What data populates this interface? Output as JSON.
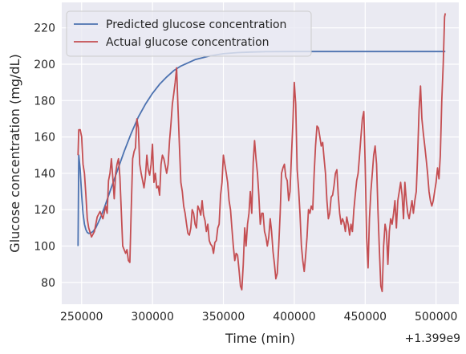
{
  "chart_data": {
    "type": "line",
    "title": "",
    "xlabel": "Time (min)",
    "ylabel": "Glucose concentration (mg/dL)",
    "x_offset_label": "+1.399e9",
    "xlim": [
      236000,
      516000
    ],
    "ylim": [
      68,
      234
    ],
    "xticks": [
      250000,
      300000,
      350000,
      400000,
      450000,
      500000
    ],
    "xtick_labels": [
      "250000",
      "300000",
      "350000",
      "400000",
      "450000",
      "500000"
    ],
    "yticks": [
      80,
      100,
      120,
      140,
      160,
      180,
      200,
      220
    ],
    "ytick_labels": [
      "80",
      "100",
      "120",
      "140",
      "160",
      "180",
      "200",
      "220"
    ],
    "grid": true,
    "legend_position": "top-left",
    "series": [
      {
        "name": "Predicted glucose concentration",
        "color": "#4c72b0",
        "points": [
          [
            247500,
            100
          ],
          [
            248000,
            150
          ],
          [
            249000,
            142
          ],
          [
            250000,
            128
          ],
          [
            251000,
            118
          ],
          [
            252000,
            112
          ],
          [
            253000,
            109
          ],
          [
            254000,
            107.5
          ],
          [
            255000,
            107
          ],
          [
            256000,
            107
          ],
          [
            258000,
            108
          ],
          [
            260000,
            110
          ],
          [
            263000,
            115
          ],
          [
            266000,
            121
          ],
          [
            270000,
            130
          ],
          [
            275000,
            141
          ],
          [
            280000,
            152
          ],
          [
            285000,
            162
          ],
          [
            290000,
            171
          ],
          [
            295000,
            178
          ],
          [
            300000,
            184
          ],
          [
            305000,
            189
          ],
          [
            310000,
            193
          ],
          [
            315000,
            196.5
          ],
          [
            320000,
            199
          ],
          [
            330000,
            202.5
          ],
          [
            340000,
            204.5
          ],
          [
            350000,
            205.8
          ],
          [
            360000,
            206.4
          ],
          [
            370000,
            206.7
          ],
          [
            380000,
            206.9
          ],
          [
            400000,
            207
          ],
          [
            450000,
            207
          ],
          [
            506500,
            207
          ]
        ]
      },
      {
        "name": "Actual glucose concentration",
        "color": "#c44e52",
        "points": [
          [
            247500,
            150
          ],
          [
            248000,
            164
          ],
          [
            249000,
            164
          ],
          [
            250000,
            160
          ],
          [
            251000,
            145
          ],
          [
            252000,
            140
          ],
          [
            253000,
            128
          ],
          [
            254000,
            115
          ],
          [
            255000,
            110
          ],
          [
            257000,
            105
          ],
          [
            259000,
            108
          ],
          [
            261000,
            116
          ],
          [
            263000,
            119
          ],
          [
            265000,
            115
          ],
          [
            267000,
            122
          ],
          [
            268000,
            118
          ],
          [
            269000,
            136
          ],
          [
            270000,
            140
          ],
          [
            271000,
            148
          ],
          [
            272000,
            138
          ],
          [
            273000,
            126
          ],
          [
            274000,
            140
          ],
          [
            275000,
            145
          ],
          [
            276000,
            148
          ],
          [
            277000,
            138
          ],
          [
            279000,
            100
          ],
          [
            281000,
            96
          ],
          [
            282000,
            98
          ],
          [
            283000,
            92
          ],
          [
            284000,
            91
          ],
          [
            285000,
            120
          ],
          [
            286000,
            148
          ],
          [
            287000,
            152
          ],
          [
            288000,
            154
          ],
          [
            289000,
            170
          ],
          [
            290000,
            165
          ],
          [
            291000,
            145
          ],
          [
            292000,
            140
          ],
          [
            293000,
            136
          ],
          [
            294000,
            132
          ],
          [
            295000,
            138
          ],
          [
            296000,
            150
          ],
          [
            297000,
            142
          ],
          [
            298000,
            139
          ],
          [
            299000,
            145
          ],
          [
            300000,
            156
          ],
          [
            301000,
            135
          ],
          [
            302000,
            140
          ],
          [
            303000,
            132
          ],
          [
            304000,
            133
          ],
          [
            305000,
            128
          ],
          [
            306000,
            145
          ],
          [
            307000,
            150
          ],
          [
            308000,
            148
          ],
          [
            309000,
            144
          ],
          [
            310000,
            140
          ],
          [
            311000,
            145
          ],
          [
            312000,
            158
          ],
          [
            313000,
            167
          ],
          [
            314000,
            178
          ],
          [
            315000,
            184
          ],
          [
            316000,
            190
          ],
          [
            317000,
            198
          ],
          [
            318000,
            175
          ],
          [
            319000,
            155
          ],
          [
            320000,
            135
          ],
          [
            321000,
            130
          ],
          [
            322000,
            122
          ],
          [
            323000,
            118
          ],
          [
            324000,
            112
          ],
          [
            325000,
            107
          ],
          [
            326000,
            106
          ],
          [
            327000,
            110
          ],
          [
            328000,
            120
          ],
          [
            329000,
            118
          ],
          [
            330000,
            112
          ],
          [
            331000,
            110
          ],
          [
            332000,
            122
          ],
          [
            333000,
            120
          ],
          [
            334000,
            117
          ],
          [
            335000,
            125
          ],
          [
            336000,
            117
          ],
          [
            337000,
            114
          ],
          [
            338000,
            108
          ],
          [
            339000,
            112
          ],
          [
            340000,
            103
          ],
          [
            341000,
            101
          ],
          [
            342000,
            100
          ],
          [
            343000,
            96
          ],
          [
            344000,
            102
          ],
          [
            345000,
            103
          ],
          [
            346000,
            110
          ],
          [
            347000,
            112
          ],
          [
            348000,
            128
          ],
          [
            349000,
            135
          ],
          [
            350000,
            150
          ],
          [
            351000,
            145
          ],
          [
            352000,
            140
          ],
          [
            353000,
            135
          ],
          [
            354000,
            125
          ],
          [
            355000,
            120
          ],
          [
            356000,
            110
          ],
          [
            357000,
            100
          ],
          [
            358000,
            92
          ],
          [
            359000,
            96
          ],
          [
            360000,
            95
          ],
          [
            361000,
            87
          ],
          [
            362000,
            78
          ],
          [
            363000,
            76
          ],
          [
            364000,
            90
          ],
          [
            365000,
            110
          ],
          [
            366000,
            100
          ],
          [
            367000,
            112
          ],
          [
            368000,
            118
          ],
          [
            369000,
            130
          ],
          [
            370000,
            118
          ],
          [
            371000,
            146
          ],
          [
            372000,
            158
          ],
          [
            373000,
            148
          ],
          [
            374000,
            140
          ],
          [
            375000,
            128
          ],
          [
            376000,
            112
          ],
          [
            377000,
            118
          ],
          [
            378000,
            118
          ],
          [
            379000,
            108
          ],
          [
            380000,
            105
          ],
          [
            381000,
            100
          ],
          [
            382000,
            105
          ],
          [
            383000,
            115
          ],
          [
            384000,
            108
          ],
          [
            385000,
            97
          ],
          [
            386000,
            90
          ],
          [
            387000,
            82
          ],
          [
            388000,
            85
          ],
          [
            389000,
            100
          ],
          [
            390000,
            118
          ],
          [
            391000,
            140
          ],
          [
            392000,
            143
          ],
          [
            393000,
            145
          ],
          [
            394000,
            138
          ],
          [
            395000,
            136
          ],
          [
            396000,
            125
          ],
          [
            397000,
            130
          ],
          [
            398000,
            150
          ],
          [
            399000,
            168
          ],
          [
            400000,
            190
          ],
          [
            401000,
            178
          ],
          [
            402000,
            142
          ],
          [
            403000,
            132
          ],
          [
            404000,
            118
          ],
          [
            405000,
            100
          ],
          [
            406000,
            92
          ],
          [
            407000,
            86
          ],
          [
            408000,
            95
          ],
          [
            409000,
            105
          ],
          [
            410000,
            120
          ],
          [
            411000,
            118
          ],
          [
            412000,
            122
          ],
          [
            413000,
            120
          ],
          [
            414000,
            140
          ],
          [
            415000,
            155
          ],
          [
            416000,
            166
          ],
          [
            417000,
            165
          ],
          [
            418000,
            160
          ],
          [
            419000,
            155
          ],
          [
            420000,
            157
          ],
          [
            421000,
            148
          ],
          [
            422000,
            140
          ],
          [
            423000,
            125
          ],
          [
            424000,
            115
          ],
          [
            425000,
            118
          ],
          [
            426000,
            127
          ],
          [
            427000,
            128
          ],
          [
            428000,
            133
          ],
          [
            429000,
            140
          ],
          [
            430000,
            142
          ],
          [
            431000,
            128
          ],
          [
            432000,
            118
          ],
          [
            433000,
            112
          ],
          [
            434000,
            115
          ],
          [
            435000,
            113
          ],
          [
            436000,
            108
          ],
          [
            437000,
            116
          ],
          [
            438000,
            112
          ],
          [
            439000,
            106
          ],
          [
            440000,
            112
          ],
          [
            441000,
            108
          ],
          [
            442000,
            120
          ],
          [
            443000,
            128
          ],
          [
            444000,
            136
          ],
          [
            445000,
            140
          ],
          [
            446000,
            150
          ],
          [
            447000,
            160
          ],
          [
            448000,
            170
          ],
          [
            449000,
            174
          ],
          [
            450000,
            145
          ],
          [
            451000,
            105
          ],
          [
            452000,
            88
          ],
          [
            453000,
            115
          ],
          [
            454000,
            130
          ],
          [
            455000,
            140
          ],
          [
            456000,
            150
          ],
          [
            457000,
            155
          ],
          [
            458000,
            145
          ],
          [
            459000,
            120
          ],
          [
            460000,
            98
          ],
          [
            461000,
            78
          ],
          [
            462000,
            75
          ],
          [
            463000,
            100
          ],
          [
            464000,
            112
          ],
          [
            465000,
            108
          ],
          [
            466000,
            90
          ],
          [
            467000,
            108
          ],
          [
            468000,
            115
          ],
          [
            469000,
            112
          ],
          [
            470000,
            118
          ],
          [
            471000,
            125
          ],
          [
            472000,
            110
          ],
          [
            473000,
            125
          ],
          [
            474000,
            130
          ],
          [
            475000,
            135
          ],
          [
            476000,
            128
          ],
          [
            477000,
            115
          ],
          [
            478000,
            135
          ],
          [
            479000,
            125
          ],
          [
            480000,
            118
          ],
          [
            481000,
            115
          ],
          [
            482000,
            120
          ],
          [
            483000,
            125
          ],
          [
            484000,
            118
          ],
          [
            485000,
            125
          ],
          [
            486000,
            130
          ],
          [
            487000,
            150
          ],
          [
            488000,
            175
          ],
          [
            489000,
            188
          ],
          [
            490000,
            170
          ],
          [
            491000,
            162
          ],
          [
            492000,
            155
          ],
          [
            493000,
            148
          ],
          [
            494000,
            140
          ],
          [
            495000,
            130
          ],
          [
            496000,
            125
          ],
          [
            497000,
            122
          ],
          [
            498000,
            125
          ],
          [
            499000,
            130
          ],
          [
            500000,
            135
          ],
          [
            501000,
            143
          ],
          [
            502000,
            137
          ],
          [
            503000,
            150
          ],
          [
            504000,
            180
          ],
          [
            505000,
            200
          ],
          [
            506000,
            226
          ],
          [
            506500,
            228
          ]
        ]
      }
    ]
  }
}
